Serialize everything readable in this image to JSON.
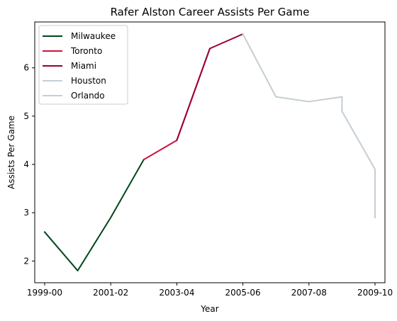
{
  "chart_data": {
    "type": "line",
    "title": "Rafer Alston Career Assists Per Game",
    "xlabel": "Year",
    "ylabel": "Assists Per Game",
    "x_ticks": [
      "1999-00",
      "2001-02",
      "2003-04",
      "2005-06",
      "2007-08",
      "2009-10"
    ],
    "y_ticks": [
      2,
      3,
      4,
      5,
      6
    ],
    "xlim": [
      -0.3,
      10.3
    ],
    "ylim": [
      1.55,
      6.95
    ],
    "legend_position": "upper-left",
    "series": [
      {
        "name": "Milwaukee",
        "color": "#00471b",
        "points": [
          [
            0,
            2.6
          ],
          [
            1,
            1.8
          ],
          [
            2,
            2.9
          ],
          [
            3,
            4.1
          ]
        ]
      },
      {
        "name": "Toronto",
        "color": "#ce1141",
        "points": [
          [
            3,
            4.1
          ],
          [
            4,
            4.5
          ],
          [
            5,
            6.4
          ]
        ]
      },
      {
        "name": "Miami",
        "color": "#98002e",
        "points": [
          [
            4,
            4.5
          ],
          [
            5,
            6.4
          ],
          [
            6,
            6.7
          ]
        ]
      },
      {
        "name": "Houston",
        "color": "#c4ced4",
        "points": [
          [
            6,
            6.7
          ],
          [
            7,
            5.4
          ],
          [
            8,
            5.3
          ],
          [
            9,
            5.4
          ],
          [
            9,
            5.1
          ]
        ]
      },
      {
        "name": "Orlando",
        "color": "#c4ced4",
        "points": [
          [
            9,
            5.1
          ],
          [
            10,
            3.9
          ],
          [
            10,
            2.9
          ]
        ]
      }
    ]
  }
}
